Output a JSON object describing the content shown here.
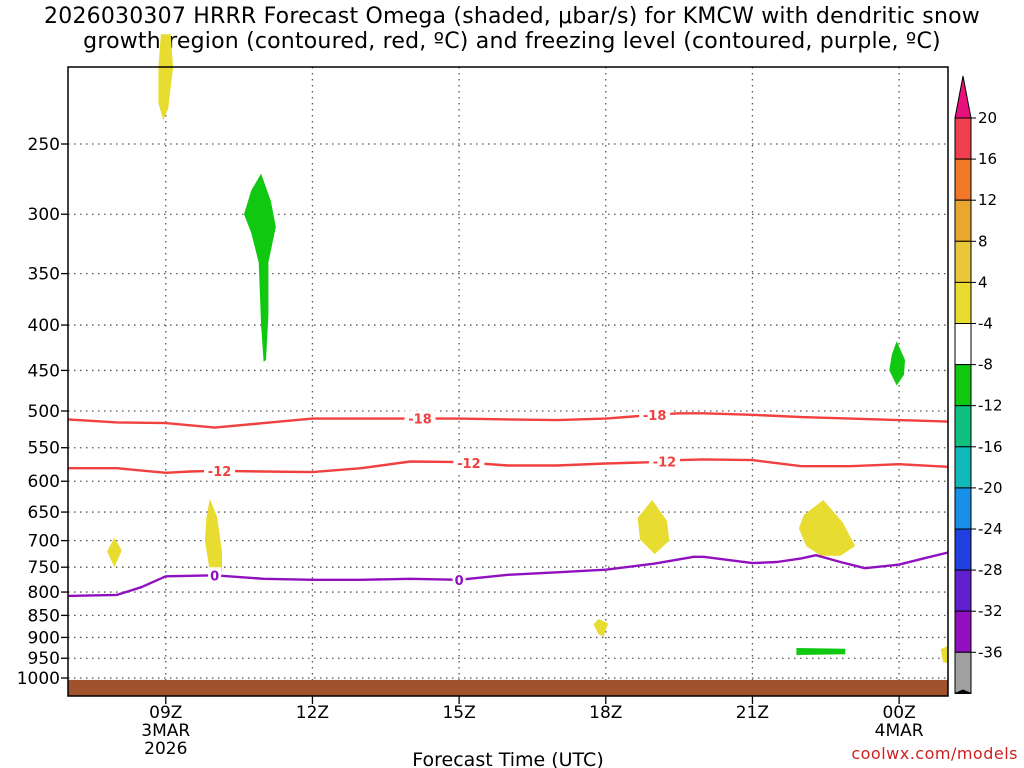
{
  "title_line1": "2026030307 HRRR Forecast Omega (shaded, μbar/s) for KMCW with dendritic snow",
  "title_line2": "growth region (contoured, red, ºC) and freezing level (contoured, purple, ºC)",
  "credit": "coolwx.com/models",
  "chart_data": {
    "type": "heatmap",
    "title": "2026030307 HRRR Forecast Omega (shaded, μbar/s) for KMCW with dendritic snow growth region (contoured, red, ºC) and freezing level (contoured, purple, ºC)",
    "xlabel": "Forecast Time (UTC)",
    "ylabel": "",
    "xlim": [
      7,
      25
    ],
    "ylim": [
      1050,
      200
    ],
    "y_scale": "log-pressure (inverted)",
    "grid": true,
    "x_ticks": [
      {
        "x": 9,
        "label": "09Z",
        "sub1": "3MAR",
        "sub2": "2026"
      },
      {
        "x": 12,
        "label": "12Z",
        "sub1": "",
        "sub2": ""
      },
      {
        "x": 15,
        "label": "15Z",
        "sub1": "",
        "sub2": ""
      },
      {
        "x": 18,
        "label": "18Z",
        "sub1": "",
        "sub2": ""
      },
      {
        "x": 21,
        "label": "21Z",
        "sub1": "",
        "sub2": ""
      },
      {
        "x": 24,
        "label": "00Z",
        "sub1": "4MAR",
        "sub2": ""
      }
    ],
    "y_ticks": [
      250,
      300,
      350,
      400,
      450,
      500,
      550,
      600,
      650,
      700,
      750,
      800,
      850,
      900,
      950,
      1000
    ],
    "surface_pressure": 1005,
    "colorbar": {
      "labels": [
        "20",
        "16",
        "12",
        "8",
        "4",
        "-4",
        "-8",
        "-12",
        "-16",
        "-20",
        "-24",
        "-28",
        "-32",
        "-36"
      ],
      "top_color": "#e8107a",
      "bottom_color": "#000000",
      "segments": [
        "#f04050",
        "#f07828",
        "#e8a830",
        "#e8c838",
        "#e8dc30",
        "#ffffff",
        "#10c810",
        "#10c080",
        "#10b8b8",
        "#1890e8",
        "#2040e0",
        "#6020d0",
        "#9010c0",
        "#a0a0a0"
      ]
    },
    "contours": [
      {
        "name": "-18C",
        "color": "#f04040",
        "label": "-18",
        "label_at": [
          14.2,
          19.0
        ],
        "points": [
          [
            7.0,
            511
          ],
          [
            8.0,
            515
          ],
          [
            9.0,
            516
          ],
          [
            10.0,
            522
          ],
          [
            11.0,
            516
          ],
          [
            12.0,
            510
          ],
          [
            13.0,
            510
          ],
          [
            14.0,
            510
          ],
          [
            15.0,
            510
          ],
          [
            16.0,
            511
          ],
          [
            17.0,
            512
          ],
          [
            18.0,
            510
          ],
          [
            19.0,
            505
          ],
          [
            19.5,
            503
          ],
          [
            20.0,
            503
          ],
          [
            21.0,
            505
          ],
          [
            22.0,
            508
          ],
          [
            23.0,
            510
          ],
          [
            24.0,
            512
          ],
          [
            25.0,
            514
          ]
        ]
      },
      {
        "name": "-12C",
        "color": "#f04040",
        "label": "-12",
        "label_at": [
          10.1,
          15.2,
          19.2
        ],
        "points": [
          [
            7.0,
            580
          ],
          [
            8.0,
            580
          ],
          [
            9.0,
            587
          ],
          [
            9.5,
            585
          ],
          [
            10.0,
            584
          ],
          [
            11.0,
            585
          ],
          [
            12.0,
            586
          ],
          [
            13.0,
            580
          ],
          [
            14.0,
            570
          ],
          [
            15.0,
            571
          ],
          [
            16.0,
            576
          ],
          [
            17.0,
            576
          ],
          [
            18.0,
            573
          ],
          [
            19.0,
            571
          ],
          [
            19.5,
            568
          ],
          [
            20.0,
            567
          ],
          [
            21.0,
            568
          ],
          [
            22.0,
            577
          ],
          [
            23.0,
            577
          ],
          [
            24.0,
            574
          ],
          [
            25.0,
            578
          ]
        ]
      },
      {
        "name": "0C",
        "color": "#9010c0",
        "label": "0",
        "label_at": [
          10.0,
          15.0
        ],
        "points": [
          [
            7.0,
            808
          ],
          [
            8.0,
            806
          ],
          [
            8.5,
            790
          ],
          [
            9.0,
            768
          ],
          [
            10.0,
            766
          ],
          [
            11.0,
            773
          ],
          [
            12.0,
            775
          ],
          [
            13.0,
            775
          ],
          [
            14.0,
            773
          ],
          [
            15.0,
            775
          ],
          [
            16.0,
            765
          ],
          [
            17.0,
            760
          ],
          [
            18.0,
            755
          ],
          [
            19.0,
            743
          ],
          [
            19.8,
            730
          ],
          [
            20.0,
            730
          ],
          [
            21.0,
            742
          ],
          [
            21.5,
            740
          ],
          [
            22.0,
            733
          ],
          [
            22.3,
            727
          ],
          [
            22.8,
            740
          ],
          [
            23.3,
            752
          ],
          [
            24.0,
            745
          ],
          [
            24.5,
            733
          ],
          [
            25.0,
            722
          ]
        ]
      }
    ],
    "omega_regions": [
      {
        "value": 4,
        "color": "#e8dc30",
        "points": [
          [
            8.9,
            188
          ],
          [
            9.1,
            188
          ],
          [
            9.15,
            205
          ],
          [
            9.05,
            228
          ],
          [
            8.95,
            235
          ],
          [
            8.85,
            225
          ],
          [
            8.85,
            205
          ]
        ]
      },
      {
        "value": 4,
        "color": "#e8dc30",
        "points": [
          [
            7.95,
            695
          ],
          [
            8.1,
            718
          ],
          [
            7.95,
            750
          ],
          [
            7.8,
            720
          ]
        ]
      },
      {
        "value": 4,
        "color": "#e8dc30",
        "points": [
          [
            9.9,
            628
          ],
          [
            10.05,
            658
          ],
          [
            10.15,
            720
          ],
          [
            10.15,
            758
          ],
          [
            9.9,
            758
          ],
          [
            9.8,
            700
          ],
          [
            9.83,
            660
          ]
        ]
      },
      {
        "value": 4,
        "color": "#e8dc30",
        "points": [
          [
            18.95,
            630
          ],
          [
            19.25,
            665
          ],
          [
            19.3,
            700
          ],
          [
            19.0,
            725
          ],
          [
            18.7,
            698
          ],
          [
            18.65,
            660
          ]
        ]
      },
      {
        "value": 4,
        "color": "#e8dc30",
        "points": [
          [
            17.85,
            858
          ],
          [
            18.05,
            868
          ],
          [
            17.95,
            898
          ],
          [
            17.85,
            892
          ],
          [
            17.75,
            870
          ]
        ]
      },
      {
        "value": 4,
        "color": "#e8dc30",
        "points": [
          [
            22.45,
            630
          ],
          [
            22.85,
            668
          ],
          [
            23.1,
            710
          ],
          [
            22.8,
            728
          ],
          [
            22.4,
            728
          ],
          [
            22.1,
            710
          ],
          [
            21.95,
            678
          ],
          [
            22.05,
            655
          ]
        ]
      },
      {
        "value": 4,
        "color": "#e8dc30",
        "points": [
          [
            25.0,
            920
          ],
          [
            24.85,
            928
          ],
          [
            24.9,
            960
          ],
          [
            25.0,
            962
          ]
        ]
      },
      {
        "value": -8,
        "color": "#10c810",
        "points": [
          [
            10.95,
            270
          ],
          [
            11.15,
            290
          ],
          [
            11.25,
            310
          ],
          [
            11.1,
            340
          ],
          [
            11.1,
            390
          ],
          [
            11.05,
            438
          ],
          [
            11.0,
            440
          ],
          [
            10.95,
            400
          ],
          [
            10.9,
            340
          ],
          [
            10.75,
            315
          ],
          [
            10.6,
            300
          ],
          [
            10.75,
            282
          ]
        ]
      },
      {
        "value": -8,
        "color": "#10c810",
        "points": [
          [
            23.95,
            417
          ],
          [
            24.12,
            438
          ],
          [
            24.1,
            455
          ],
          [
            23.95,
            468
          ],
          [
            23.8,
            450
          ],
          [
            23.85,
            432
          ]
        ]
      },
      {
        "value": -8,
        "color": "#10c810",
        "points": [
          [
            21.9,
            925
          ],
          [
            22.9,
            927
          ],
          [
            22.9,
            940
          ],
          [
            21.9,
            942
          ]
        ]
      }
    ]
  }
}
